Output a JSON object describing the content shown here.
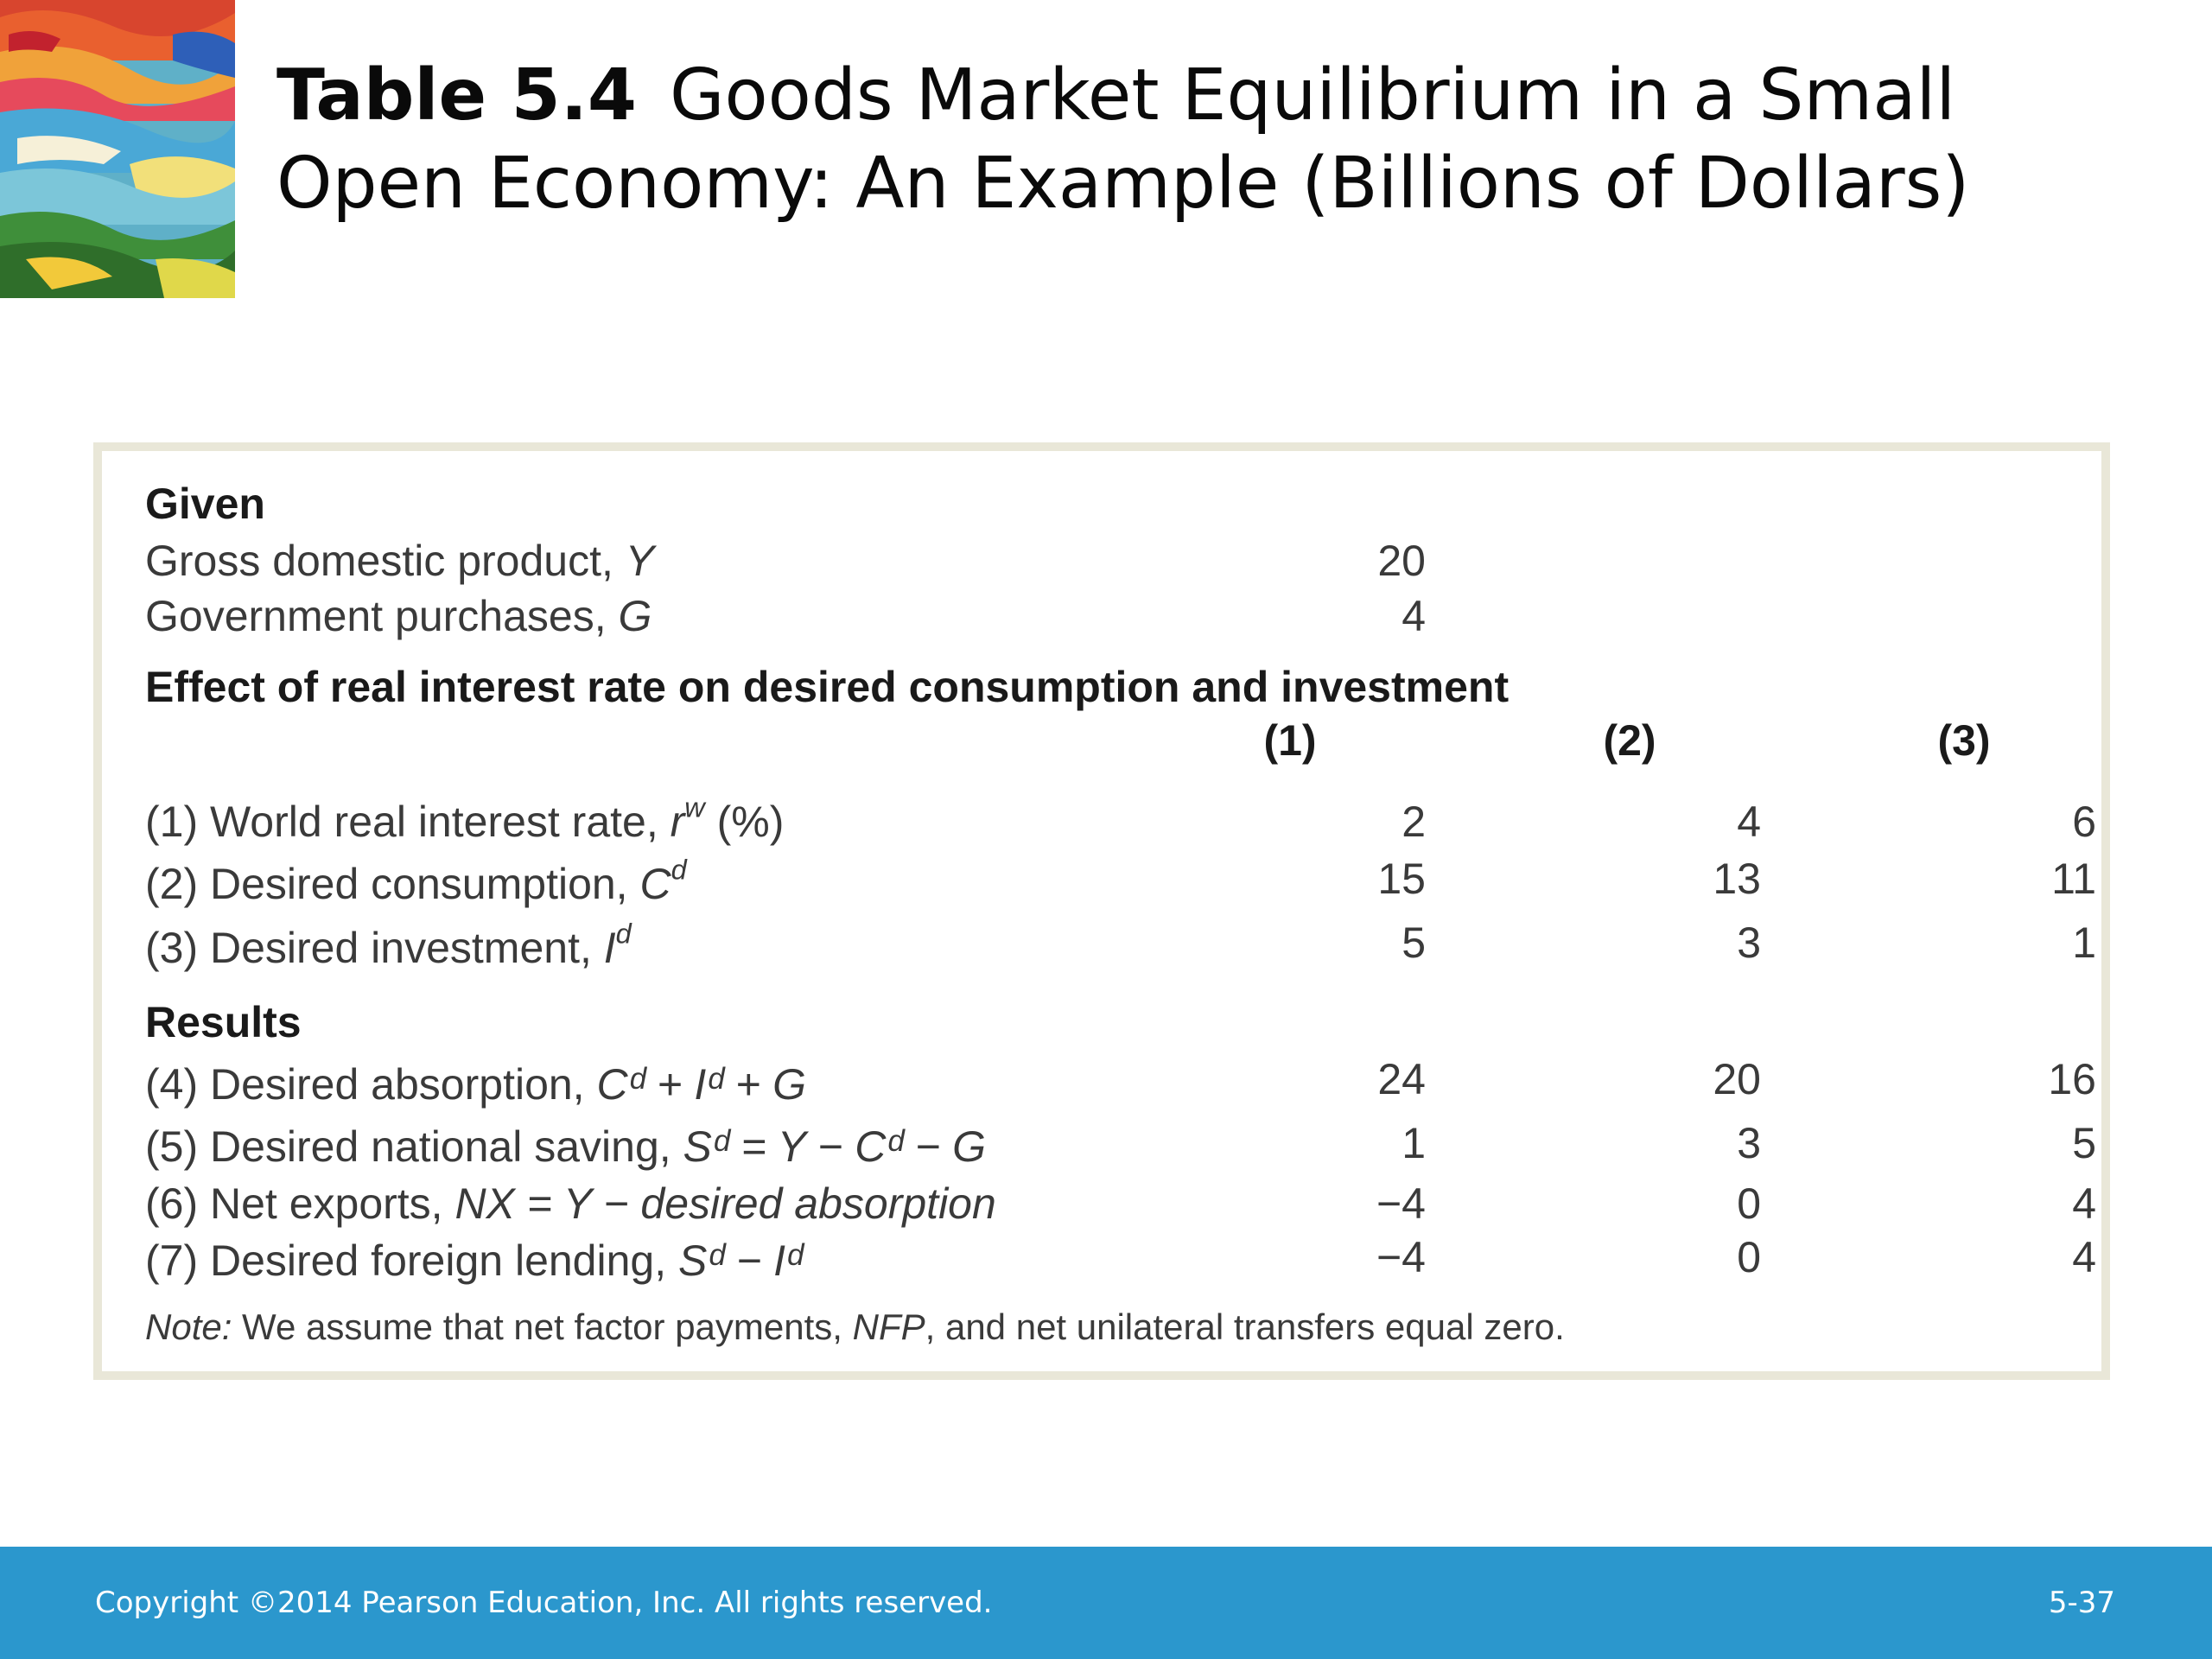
{
  "title": {
    "number": "Table 5.4",
    "line1": "Goods Market Equilibrium in a Small",
    "line2": "Open Economy: An Example (Billions of Dollars)"
  },
  "table": {
    "given_heading": "Given",
    "given_rows": [
      {
        "label": "Gross domestic product, ",
        "sym": "Y",
        "value": "20"
      },
      {
        "label": "Government purchases, ",
        "sym": "G",
        "value": "4"
      }
    ],
    "effect_heading": "Effect of real interest rate on desired consumption and investment",
    "columns": [
      "(1)",
      "(2)",
      "(3)"
    ],
    "effect_rows": [
      {
        "label": "(1) World real interest rate, ",
        "sym": "r",
        "sup": "w",
        "tail": " (%)",
        "values": [
          "2",
          "4",
          "6"
        ]
      },
      {
        "label": "(2) Desired consumption, ",
        "sym": "C",
        "sup": "d",
        "tail": "",
        "values": [
          "15",
          "13",
          "11"
        ]
      },
      {
        "label": "(3) Desired investment, ",
        "sym": "I",
        "sup": "d",
        "tail": "",
        "values": [
          "5",
          "3",
          "1"
        ]
      }
    ],
    "results_heading": "Results",
    "results_rows": [
      {
        "label": "(4) Desired absorption, ",
        "expr": "Cᵈ + Iᵈ + G",
        "values": [
          "24",
          "20",
          "16"
        ]
      },
      {
        "label": "(5) Desired national saving, ",
        "expr": "Sᵈ = Y − Cᵈ − G",
        "values": [
          "1",
          "3",
          "5"
        ]
      },
      {
        "label": "(6) Net exports, ",
        "expr": "NX = Y − desired absorption",
        "values": [
          "−4",
          "0",
          "4"
        ]
      },
      {
        "label": "(7) Desired foreign lending, ",
        "expr": "Sᵈ − Iᵈ",
        "values": [
          "−4",
          "0",
          "4"
        ]
      }
    ],
    "note_label": "Note:",
    "note_pre": " We assume that net factor payments, ",
    "note_sym": "NFP",
    "note_post": ", and net unilateral transfers equal zero."
  },
  "footer": {
    "copyright": "Copyright ©2014 Pearson Education, Inc. All rights reserved.",
    "page": "5-37"
  },
  "colors": {
    "footer_bar": "#2b97cd",
    "table_border": "#e9e7d8"
  }
}
